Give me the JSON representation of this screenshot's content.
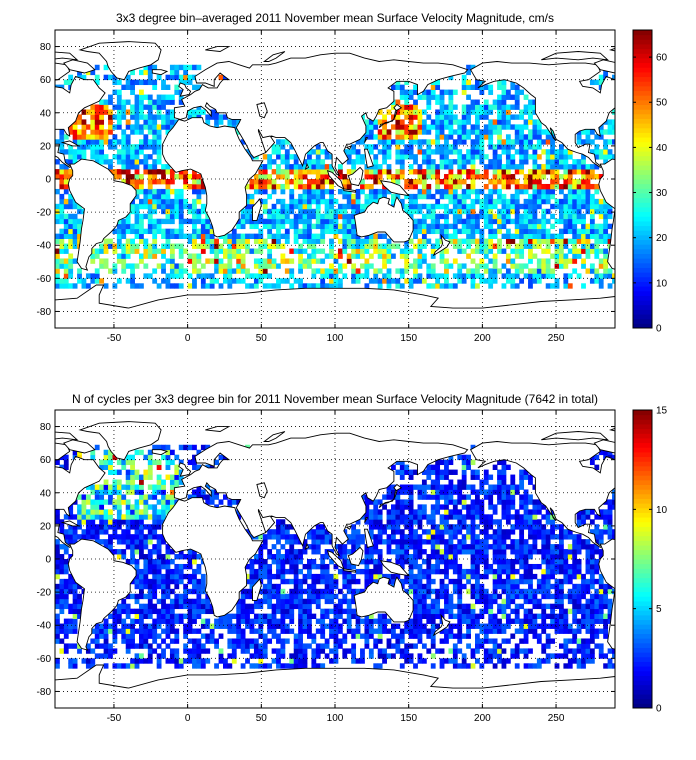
{
  "chart_data": [
    {
      "type": "heatmap",
      "title": "3x3 degree bin–averaged 2011 November mean Surface Velocity Magnitude, cm/s",
      "xlim": [
        -90,
        290
      ],
      "ylim": [
        -90,
        90
      ],
      "xticks": [
        -50,
        0,
        50,
        100,
        150,
        200,
        250
      ],
      "yticks": [
        -80,
        -60,
        -40,
        -20,
        0,
        20,
        40,
        60,
        80
      ],
      "grid": true,
      "bin_size_deg": 3,
      "colormap": "jet",
      "colorbar": {
        "min": 0,
        "max": 66,
        "ticks": [
          0,
          10,
          20,
          30,
          40,
          50,
          60
        ]
      },
      "value_distribution": "mostly 10-30 cm/s; highest (50-66 cm/s) along equatorial bands, western boundary currents and Antarctic Circumpolar Current",
      "seed": 11
    },
    {
      "type": "heatmap",
      "title": "N of cycles per 3x3 degree bin for 2011 November mean Surface Velocity Magnitude (7642 in total)",
      "xlim": [
        -90,
        290
      ],
      "ylim": [
        -90,
        90
      ],
      "xticks": [
        -50,
        0,
        50,
        100,
        150,
        200,
        250
      ],
      "yticks": [
        -80,
        -60,
        -40,
        -20,
        0,
        20,
        40,
        60,
        80
      ],
      "grid": true,
      "bin_size_deg": 3,
      "colormap": "jet",
      "colorbar": {
        "min": 0,
        "max": 15,
        "ticks": [
          0,
          5,
          10,
          15
        ]
      },
      "total_cycles": 7642,
      "value_distribution": "mostly 1-3 cycles per bin; up to ~15 in North Atlantic",
      "seed": 29
    }
  ]
}
